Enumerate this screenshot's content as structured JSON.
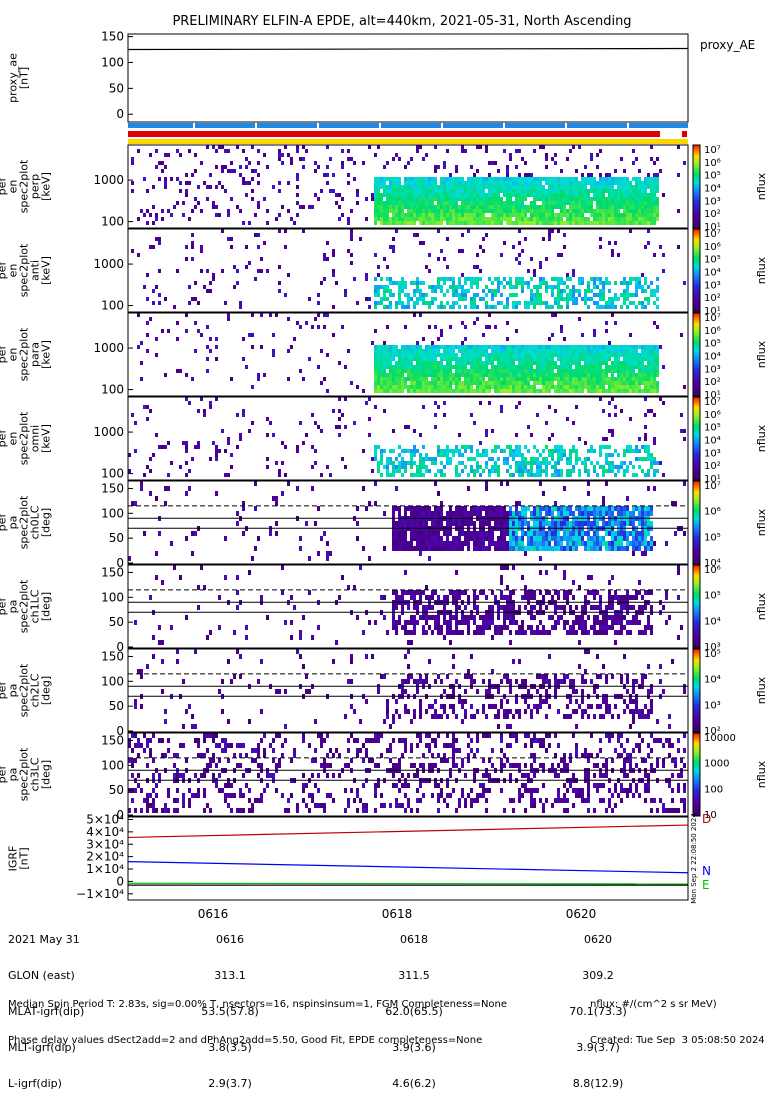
{
  "title": "PRELIMINARY ELFIN-A EPDE, alt=440km, 2021-05-31, North Ascending",
  "proxy_label": "proxy_AE",
  "colorbar_unit": "nflux",
  "panels": [
    {
      "id": "proxy_ae",
      "ylabel": [
        "proxy_ae",
        "[nT]"
      ],
      "type": "line",
      "yticks": [
        "150",
        "100",
        "50",
        "0"
      ],
      "ytick_values": [
        150,
        100,
        50,
        0
      ],
      "ylim": [
        -15,
        155
      ],
      "series": [
        {
          "x": [
            0,
            1
          ],
          "y": [
            125,
            127
          ]
        }
      ]
    },
    {
      "id": "pef_spec_perp",
      "ylabel": [
        "ela",
        "pef",
        "en",
        "spec2plot",
        "perp",
        "[keV]"
      ],
      "type": "heatmap",
      "yticks": [
        "1000",
        "100"
      ],
      "cbar_ticks": [
        "10⁷",
        "10⁶",
        "10⁵",
        "10⁴",
        "10³",
        "10²",
        "10¹"
      ]
    },
    {
      "id": "pef_spec_anti",
      "ylabel": [
        "ela",
        "pef",
        "en",
        "spec2plot",
        "anti",
        "[keV]"
      ],
      "type": "heatmap",
      "yticks": [
        "1000",
        "100"
      ],
      "cbar_ticks": [
        "10⁷",
        "10⁶",
        "10⁵",
        "10⁴",
        "10³",
        "10²",
        "10¹"
      ]
    },
    {
      "id": "pef_spec_para",
      "ylabel": [
        "ela",
        "pef",
        "en",
        "spec2plot",
        "para",
        "[keV]"
      ],
      "type": "heatmap",
      "yticks": [
        "1000",
        "100"
      ],
      "cbar_ticks": [
        "10⁷",
        "10⁶",
        "10⁵",
        "10⁴",
        "10³",
        "10²",
        "10¹"
      ]
    },
    {
      "id": "pef_spec_omni",
      "ylabel": [
        "ela",
        "pef",
        "en",
        "spec2plot",
        "omni",
        "[keV]"
      ],
      "type": "heatmap",
      "yticks": [
        "1000",
        "100"
      ],
      "cbar_ticks": [
        "10⁷",
        "10⁶",
        "10⁵",
        "10⁴",
        "10³",
        "10²",
        "10¹"
      ]
    },
    {
      "id": "pa_ch0",
      "ylabel": [
        "ela",
        "pef",
        "pa",
        "spec2plot",
        "ch0LC",
        "[deg]"
      ],
      "type": "pa",
      "yticks": [
        "150",
        "100",
        "50",
        "0"
      ],
      "cbar_ticks": [
        "10⁷",
        "10⁶",
        "10⁵",
        "10⁴"
      ]
    },
    {
      "id": "pa_ch1",
      "ylabel": [
        "ela",
        "pef",
        "pa",
        "spec2plot",
        "ch1LC",
        "[deg]"
      ],
      "type": "pa",
      "yticks": [
        "150",
        "100",
        "50",
        "0"
      ],
      "cbar_ticks": [
        "10⁶",
        "10⁵",
        "10⁴",
        "10³"
      ]
    },
    {
      "id": "pa_ch2",
      "ylabel": [
        "ela",
        "pef",
        "pa",
        "spec2plot",
        "ch2LC",
        "[deg]"
      ],
      "type": "pa",
      "yticks": [
        "150",
        "100",
        "50",
        "0"
      ],
      "cbar_ticks": [
        "10⁵",
        "10⁴",
        "10³",
        "10²"
      ]
    },
    {
      "id": "pa_ch3",
      "ylabel": [
        "ela",
        "pef",
        "pa",
        "spec2plot",
        "ch3LC",
        "[deg]"
      ],
      "type": "pa",
      "yticks": [
        "150",
        "100",
        "50",
        "0"
      ],
      "cbar_ticks": [
        "10000",
        "1000",
        "100",
        "10"
      ]
    },
    {
      "id": "igrf",
      "ylabel": [
        "IGRF",
        "[nT]"
      ],
      "type": "line",
      "yticks": [
        "5×10⁴",
        "4×10⁴",
        "3×10⁴",
        "2×10⁴",
        "1×10⁴",
        "0",
        "−1×10⁴"
      ],
      "ytick_values": [
        50000,
        40000,
        30000,
        20000,
        10000,
        0,
        -10000
      ],
      "ylim": [
        -15000,
        52000
      ],
      "legend": [
        "D",
        "N",
        "E"
      ],
      "series": [
        {
          "name": "D",
          "color": "#c00000",
          "x": [
            0,
            1
          ],
          "y": [
            35500,
            45500
          ]
        },
        {
          "name": "N",
          "color": "#0000ff",
          "x": [
            0,
            1
          ],
          "y": [
            16000,
            7000
          ]
        },
        {
          "name": "E",
          "color": "#00c000",
          "x": [
            0,
            1
          ],
          "y": [
            -1500,
            -2000
          ]
        },
        {
          "name": "",
          "color": "#000000",
          "x": [
            0,
            1
          ],
          "y": [
            -3000,
            -3000
          ]
        }
      ],
      "side_text": "Mon Sep  2 22:08:50 2024"
    }
  ],
  "bars": {
    "blue_color": "#1e88e5",
    "red_color": "#e00000",
    "yellow_color": "#ffd400"
  },
  "xticks": [
    "0616",
    "0618",
    "0620"
  ],
  "ephemeris": {
    "labels": [
      "2021 May 31",
      "GLON (east)",
      "MLAT-igrf(dip)",
      "MLT-igrf(dip)",
      "L-igrf(dip)"
    ],
    "columns": [
      [
        "0616",
        "313.1",
        "53.5(57.8)",
        "3.8(3.5)",
        "2.9(3.7)"
      ],
      [
        "0618",
        "311.5",
        "62.0(65.5)",
        "3.9(3.6)",
        "4.6(6.2)"
      ],
      [
        "0620",
        "309.2",
        "70.1(73.3)",
        "3.9(3.7)",
        "8.8(12.9)"
      ]
    ]
  },
  "footer": {
    "line1": "Median Spin Period T: 2.83s, sig=0.00% T, nsectors=16, nspinsinsum=1, FGM Completeness=None",
    "line2": "Phase delay values dSect2add=2 and dPhAng2add=5.50, Good Fit, EPDE completeness=None",
    "unit": "nflux: #/(cm^2 s sr MeV)",
    "created": "Created: Tue Sep  3 05:08:50 2024"
  },
  "colors": {
    "accent_blue": "#1e88e5"
  }
}
